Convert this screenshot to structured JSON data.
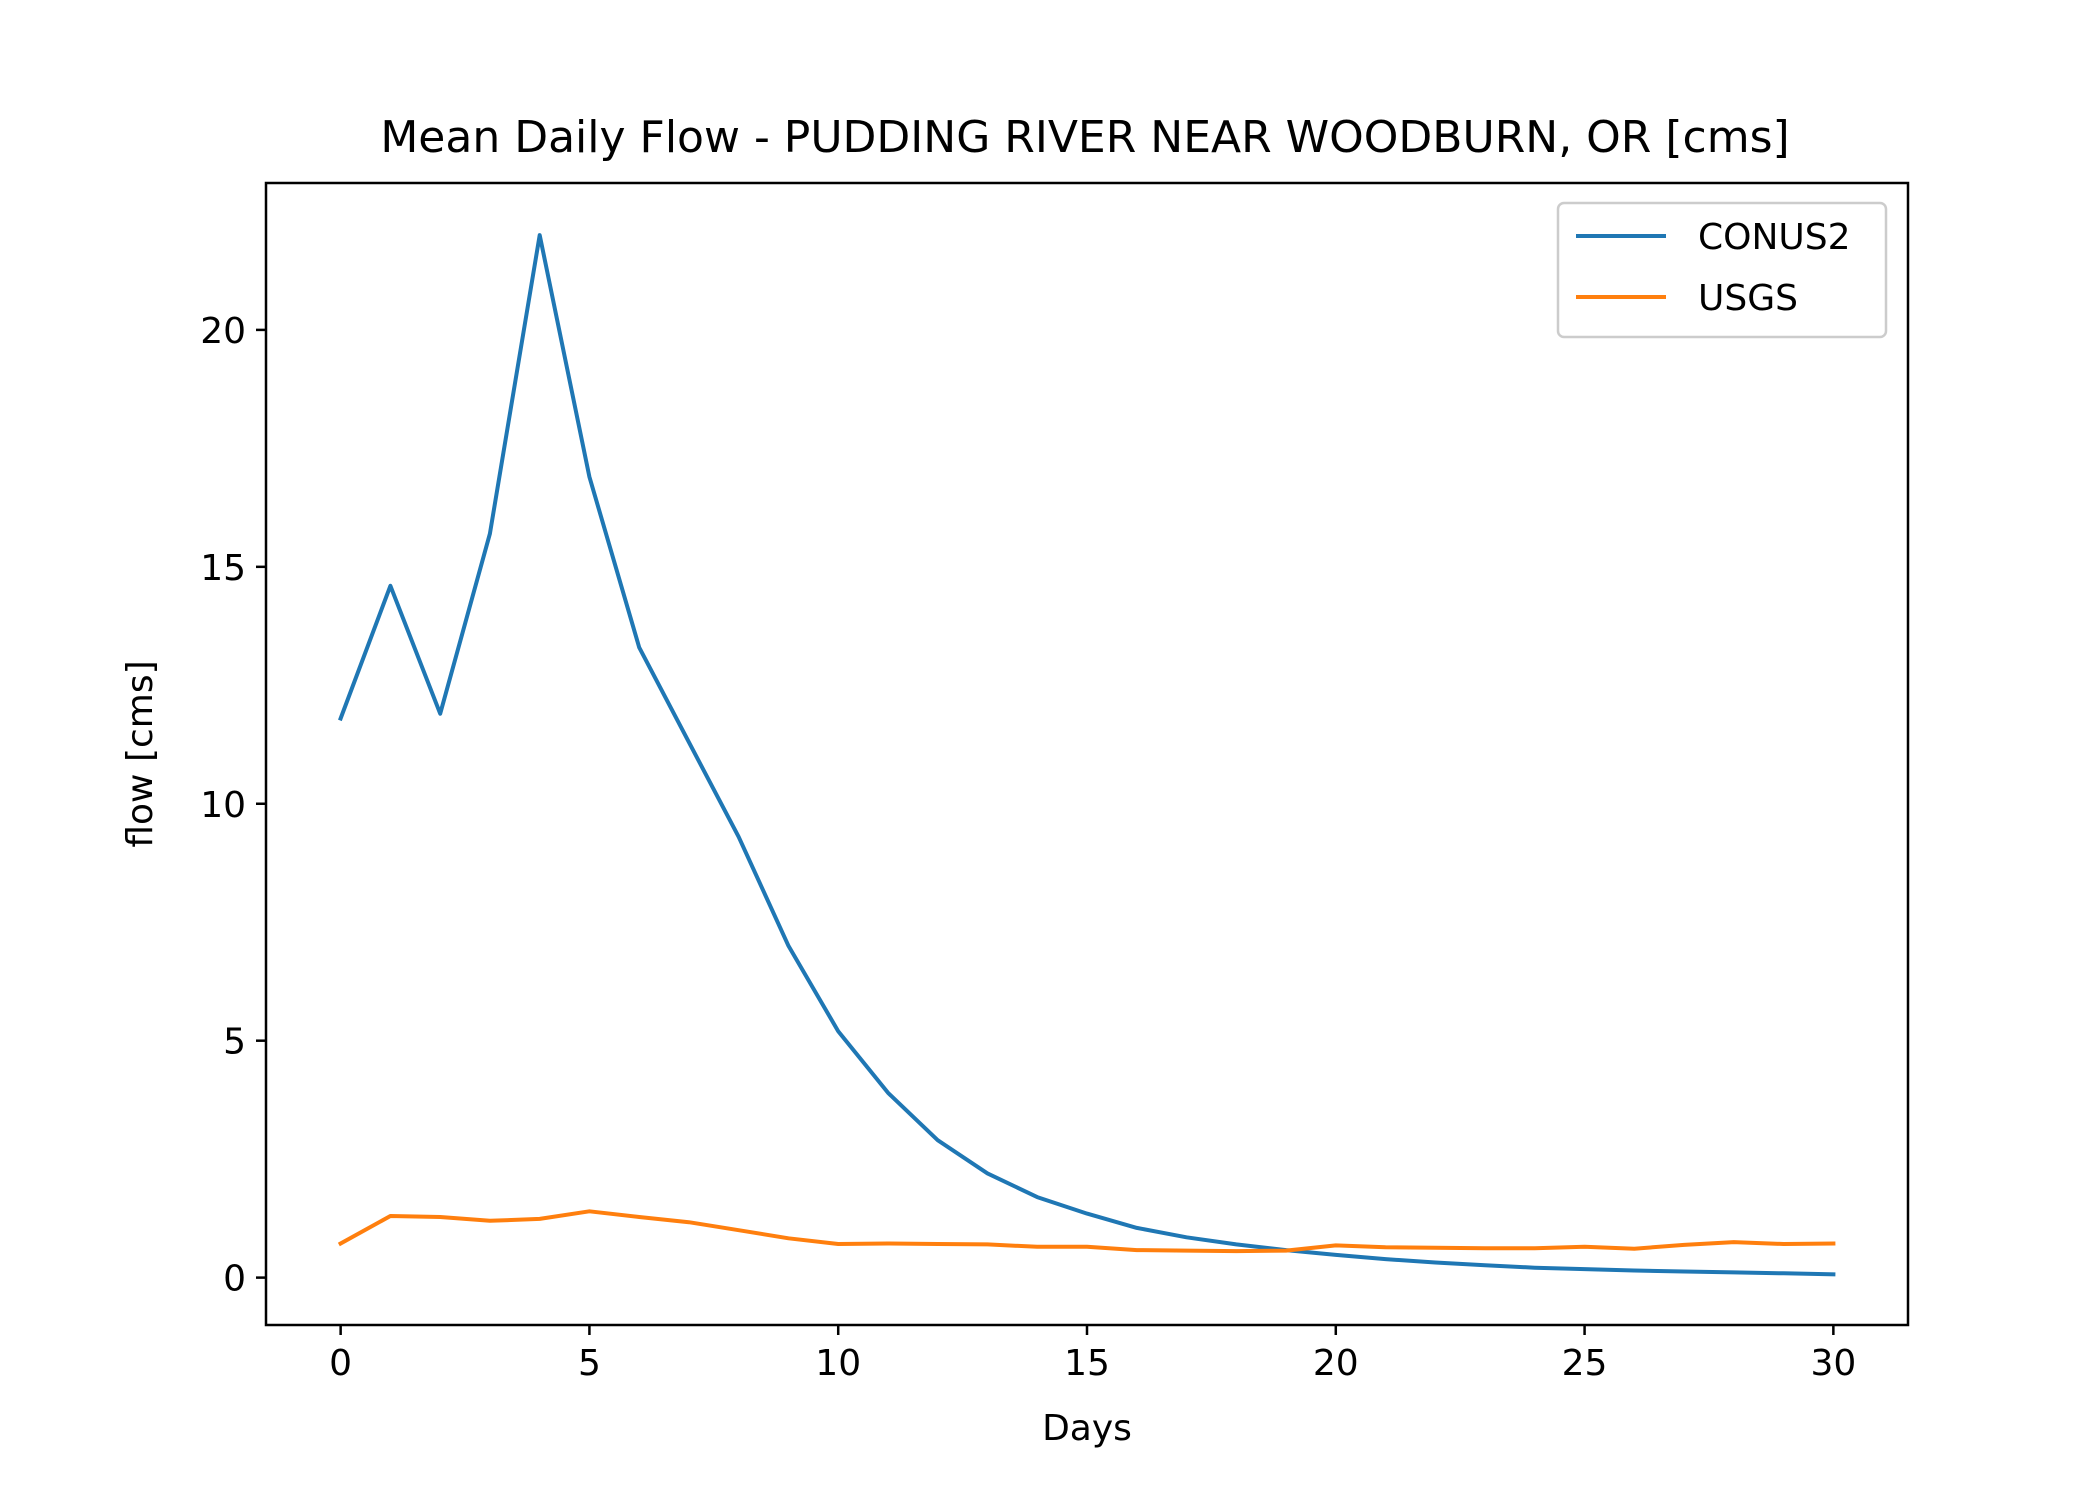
{
  "chart_data": {
    "type": "line",
    "title": "Mean Daily Flow - PUDDING RIVER NEAR WOODBURN, OR [cms]",
    "xlabel": "Days",
    "ylabel": "flow [cms]",
    "xlim": [
      -1.5,
      31.5
    ],
    "ylim": [
      -1.0,
      23.1
    ],
    "xticks": [
      0,
      5,
      10,
      15,
      20,
      25,
      30
    ],
    "yticks": [
      0,
      5,
      10,
      15,
      20
    ],
    "legend_position": "top-right",
    "grid": false,
    "x": [
      0,
      1,
      2,
      3,
      4,
      5,
      6,
      7,
      8,
      9,
      10,
      11,
      12,
      13,
      14,
      15,
      16,
      17,
      18,
      19,
      20,
      21,
      22,
      23,
      24,
      25,
      26,
      27,
      28,
      29,
      30
    ],
    "series": [
      {
        "name": "CONUS2",
        "color": "#1f77b4",
        "values": [
          11.8,
          14.6,
          11.9,
          15.7,
          22.0,
          16.9,
          13.3,
          11.3,
          9.3,
          7.0,
          5.2,
          3.9,
          2.9,
          2.2,
          1.7,
          1.35,
          1.05,
          0.85,
          0.7,
          0.58,
          0.48,
          0.39,
          0.32,
          0.26,
          0.21,
          0.18,
          0.15,
          0.13,
          0.11,
          0.09,
          0.07
        ]
      },
      {
        "name": "USGS",
        "color": "#ff7f0e",
        "values": [
          0.72,
          1.3,
          1.28,
          1.2,
          1.24,
          1.4,
          1.28,
          1.17,
          1.0,
          0.83,
          0.71,
          0.72,
          0.71,
          0.7,
          0.65,
          0.65,
          0.58,
          0.57,
          0.56,
          0.57,
          0.68,
          0.64,
          0.63,
          0.62,
          0.62,
          0.65,
          0.61,
          0.69,
          0.75,
          0.71,
          0.72
        ]
      }
    ]
  }
}
